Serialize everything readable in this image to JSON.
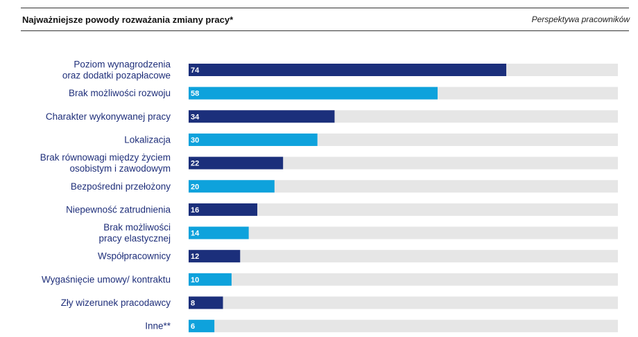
{
  "header": {
    "title": "Najważniejsze powody rozważania zmiany pracy*",
    "subtitle": "Perspektywa pracowników"
  },
  "colors": {
    "dark": "#1b2f7b",
    "light": "#0ea2dc",
    "track": "#e6e6e6",
    "label": "#1f2f7a"
  },
  "chart_data": {
    "type": "bar",
    "orientation": "horizontal",
    "title": "Najważniejsze powody rozważania zmiany pracy*",
    "subtitle": "Perspektywa pracowników",
    "xlim": [
      0,
      100
    ],
    "grid": false,
    "categories": [
      [
        "Poziom wynagrodzenia",
        "oraz dodatki pozapłacowe"
      ],
      [
        "Brak możliwości rozwoju"
      ],
      [
        "Charakter wykonywanej pracy"
      ],
      [
        "Lokalizacja"
      ],
      [
        "Brak równowagi między życiem",
        "osobistym i zawodowym"
      ],
      [
        "Bezpośredni przełożony"
      ],
      [
        "Niepewność zatrudnienia"
      ],
      [
        "Brak możliwości",
        "pracy elastycznej"
      ],
      [
        "Współpracownicy"
      ],
      [
        "Wygaśnięcie umowy/ kontraktu"
      ],
      [
        "Zły wizerunek pracodawcy"
      ],
      [
        "Inne**"
      ]
    ],
    "values": [
      74,
      58,
      34,
      30,
      22,
      20,
      16,
      14,
      12,
      10,
      8,
      6
    ],
    "bar_colors": [
      "dark",
      "light",
      "dark",
      "light",
      "dark",
      "light",
      "dark",
      "light",
      "dark",
      "light",
      "dark",
      "light"
    ]
  }
}
